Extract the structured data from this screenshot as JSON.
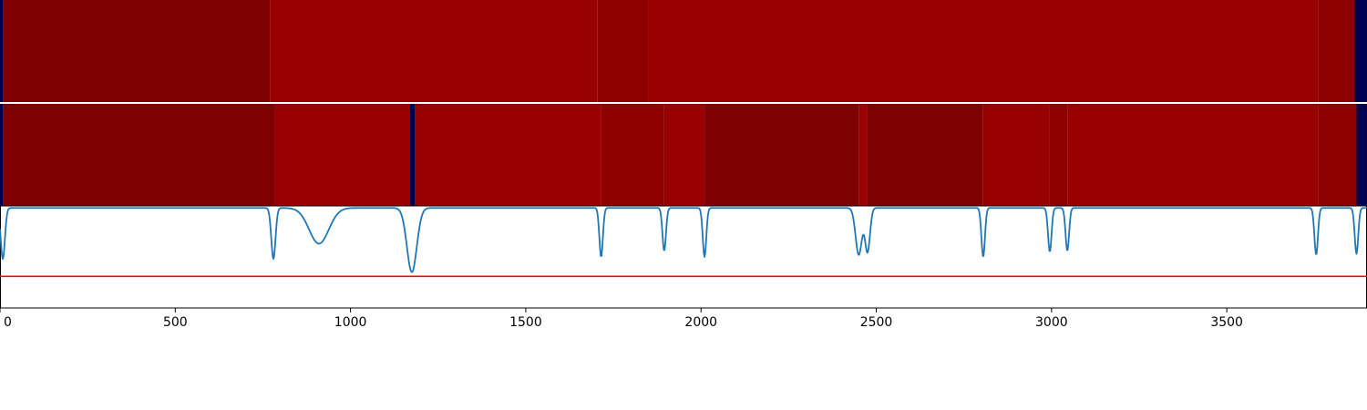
{
  "chart_data": [
    {
      "type": "heatmap",
      "panel": "top-strip",
      "x_range": [
        0,
        3900
      ],
      "colors": {
        "low": "#000050",
        "dark": "#7f0000",
        "mid": "#990000",
        "mid2": "#8e0000"
      },
      "segments": [
        {
          "x0": 0,
          "x1": 8,
          "level": "low"
        },
        {
          "x0": 8,
          "x1": 770,
          "level": "dark"
        },
        {
          "x0": 770,
          "x1": 1705,
          "level": "mid"
        },
        {
          "x0": 1705,
          "x1": 1850,
          "level": "mid2"
        },
        {
          "x0": 1850,
          "x1": 3760,
          "level": "mid"
        },
        {
          "x0": 3760,
          "x1": 3865,
          "level": "mid2"
        },
        {
          "x0": 3865,
          "x1": 3900,
          "level": "low"
        }
      ]
    },
    {
      "type": "heatmap",
      "panel": "middle-strip",
      "x_range": [
        0,
        3900
      ],
      "colors": {
        "low": "#000050",
        "dark": "#7f0000",
        "mid": "#990000",
        "mid2": "#8e0000"
      },
      "segments": [
        {
          "x0": 0,
          "x1": 8,
          "level": "low"
        },
        {
          "x0": 8,
          "x1": 785,
          "level": "dark"
        },
        {
          "x0": 785,
          "x1": 1170,
          "level": "mid"
        },
        {
          "x0": 1170,
          "x1": 1185,
          "level": "low"
        },
        {
          "x0": 1185,
          "x1": 1715,
          "level": "mid"
        },
        {
          "x0": 1715,
          "x1": 1895,
          "level": "mid2"
        },
        {
          "x0": 1895,
          "x1": 2010,
          "level": "mid"
        },
        {
          "x0": 2010,
          "x1": 2450,
          "level": "dark"
        },
        {
          "x0": 2450,
          "x1": 2475,
          "level": "mid"
        },
        {
          "x0": 2475,
          "x1": 2805,
          "level": "dark"
        },
        {
          "x0": 2805,
          "x1": 2995,
          "level": "mid"
        },
        {
          "x0": 2995,
          "x1": 3045,
          "level": "mid2"
        },
        {
          "x0": 3045,
          "x1": 3760,
          "level": "mid"
        },
        {
          "x0": 3760,
          "x1": 3870,
          "level": "mid2"
        },
        {
          "x0": 3870,
          "x1": 3900,
          "level": "low"
        }
      ]
    },
    {
      "type": "line",
      "panel": "bottom-line",
      "xlim": [
        0,
        3900
      ],
      "ylim": [
        0,
        1
      ],
      "xticks": [
        0,
        500,
        1000,
        1500,
        2000,
        2500,
        3000,
        3500
      ],
      "line_color": "#1f77b4",
      "baseline": 0.98,
      "dips": [
        {
          "center": 8,
          "depth": 0.5,
          "width": 6
        },
        {
          "center": 780,
          "depth": 0.5,
          "width": 6
        },
        {
          "center": 910,
          "depth": 0.35,
          "width": 28
        },
        {
          "center": 1175,
          "depth": 0.63,
          "width": 14
        },
        {
          "center": 1715,
          "depth": 0.48,
          "width": 5
        },
        {
          "center": 1895,
          "depth": 0.42,
          "width": 5
        },
        {
          "center": 2010,
          "depth": 0.48,
          "width": 5
        },
        {
          "center": 2450,
          "depth": 0.46,
          "width": 9
        },
        {
          "center": 2475,
          "depth": 0.43,
          "width": 7
        },
        {
          "center": 2805,
          "depth": 0.48,
          "width": 5
        },
        {
          "center": 2995,
          "depth": 0.43,
          "width": 5
        },
        {
          "center": 3045,
          "depth": 0.42,
          "width": 5
        },
        {
          "center": 3755,
          "depth": 0.46,
          "width": 5
        },
        {
          "center": 3870,
          "depth": 0.45,
          "width": 5
        }
      ],
      "threshold": {
        "value": 0.31,
        "color": "#ff0000"
      }
    }
  ]
}
